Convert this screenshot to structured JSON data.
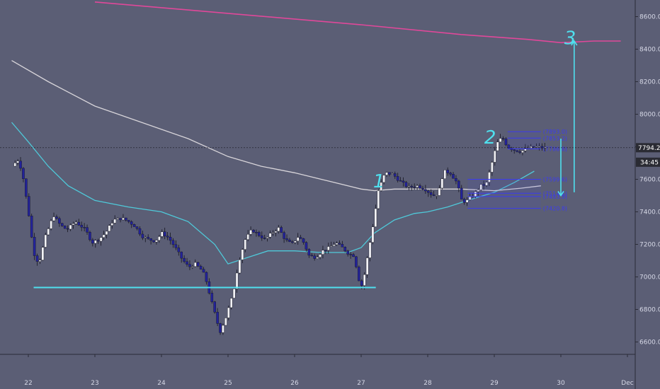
{
  "chart_data": {
    "type": "candlestick",
    "title": "",
    "xlabel": "",
    "ylabel": "",
    "ylim": [
      6480,
      8690
    ],
    "y_ticks": [
      6600,
      6800,
      7000,
      7200,
      7400,
      7600,
      7800,
      8000,
      8200,
      8400,
      8600
    ],
    "x_ticks": [
      {
        "label": "22",
        "t": 0
      },
      {
        "label": "23",
        "t": 1
      },
      {
        "label": "24",
        "t": 2
      },
      {
        "label": "25",
        "t": 3
      },
      {
        "label": "26",
        "t": 4
      },
      {
        "label": "27",
        "t": 5
      },
      {
        "label": "28",
        "t": 6
      },
      {
        "label": "29",
        "t": 7
      },
      {
        "label": "30",
        "t": 8
      },
      {
        "label": "Dec",
        "t": 9
      }
    ],
    "grid": false,
    "price_tag": {
      "label": "7794.2",
      "value": 7794.2
    },
    "countdown_tag": {
      "label": "34:45",
      "value": 7705
    },
    "candle_path": [
      [
        -0.2,
        7680
      ],
      [
        -0.12,
        7720
      ],
      [
        -0.05,
        7650
      ],
      [
        0.05,
        7380
      ],
      [
        0.12,
        7150
      ],
      [
        0.2,
        7080
      ],
      [
        0.3,
        7250
      ],
      [
        0.42,
        7380
      ],
      [
        0.52,
        7320
      ],
      [
        0.62,
        7290
      ],
      [
        0.75,
        7340
      ],
      [
        0.9,
        7290
      ],
      [
        1.0,
        7210
      ],
      [
        1.1,
        7230
      ],
      [
        1.2,
        7270
      ],
      [
        1.32,
        7350
      ],
      [
        1.45,
        7360
      ],
      [
        1.55,
        7340
      ],
      [
        1.65,
        7310
      ],
      [
        1.75,
        7250
      ],
      [
        1.85,
        7230
      ],
      [
        1.95,
        7220
      ],
      [
        2.05,
        7270
      ],
      [
        2.15,
        7240
      ],
      [
        2.25,
        7180
      ],
      [
        2.35,
        7110
      ],
      [
        2.45,
        7060
      ],
      [
        2.55,
        7080
      ],
      [
        2.65,
        7040
      ],
      [
        2.7,
        7000
      ],
      [
        2.78,
        6870
      ],
      [
        2.86,
        6750
      ],
      [
        2.92,
        6660
      ],
      [
        3.0,
        6740
      ],
      [
        3.06,
        6820
      ],
      [
        3.12,
        6900
      ],
      [
        3.2,
        7090
      ],
      [
        3.3,
        7230
      ],
      [
        3.4,
        7290
      ],
      [
        3.5,
        7260
      ],
      [
        3.6,
        7230
      ],
      [
        3.7,
        7270
      ],
      [
        3.8,
        7300
      ],
      [
        3.9,
        7230
      ],
      [
        4.0,
        7200
      ],
      [
        4.1,
        7250
      ],
      [
        4.18,
        7210
      ],
      [
        4.26,
        7130
      ],
      [
        4.36,
        7120
      ],
      [
        4.46,
        7160
      ],
      [
        4.56,
        7180
      ],
      [
        4.66,
        7210
      ],
      [
        4.76,
        7180
      ],
      [
        4.86,
        7140
      ],
      [
        4.94,
        7130
      ],
      [
        5.0,
        6990
      ],
      [
        5.06,
        6940
      ],
      [
        5.14,
        7130
      ],
      [
        5.22,
        7320
      ],
      [
        5.3,
        7530
      ],
      [
        5.4,
        7640
      ],
      [
        5.52,
        7630
      ],
      [
        5.62,
        7590
      ],
      [
        5.75,
        7550
      ],
      [
        5.88,
        7560
      ],
      [
        6.0,
        7540
      ],
      [
        6.12,
        7500
      ],
      [
        6.2,
        7510
      ],
      [
        6.28,
        7650
      ],
      [
        6.38,
        7640
      ],
      [
        6.48,
        7580
      ],
      [
        6.56,
        7460
      ],
      [
        6.64,
        7470
      ],
      [
        6.74,
        7510
      ],
      [
        6.84,
        7560
      ],
      [
        6.92,
        7570
      ],
      [
        7.0,
        7690
      ],
      [
        7.08,
        7820
      ],
      [
        7.16,
        7860
      ],
      [
        7.24,
        7800
      ],
      [
        7.34,
        7780
      ],
      [
        7.44,
        7770
      ],
      [
        7.54,
        7790
      ],
      [
        7.66,
        7800
      ],
      [
        7.78,
        7794
      ]
    ],
    "series": [
      {
        "color": "#4fc9d9",
        "x": [
          -0.25,
          0,
          0.3,
          0.6,
          1,
          1.5,
          2,
          2.4,
          2.8,
          3,
          3.3,
          3.6,
          4,
          4.4,
          4.8,
          5,
          5.2,
          5.5,
          5.8,
          6,
          6.3,
          6.6,
          7,
          7.3,
          7.6
        ],
        "values": [
          7950,
          7830,
          7680,
          7560,
          7470,
          7430,
          7400,
          7340,
          7200,
          7080,
          7120,
          7160,
          7160,
          7150,
          7150,
          7180,
          7270,
          7350,
          7390,
          7400,
          7430,
          7470,
          7520,
          7580,
          7650
        ]
      },
      {
        "color": "#d8d5da",
        "x": [
          -0.25,
          0.3,
          1,
          1.7,
          2.4,
          3,
          3.5,
          4,
          4.5,
          5,
          5.2,
          5.5,
          6,
          6.5,
          7,
          7.4,
          7.7
        ],
        "values": [
          8330,
          8200,
          8050,
          7950,
          7850,
          7740,
          7680,
          7640,
          7590,
          7540,
          7530,
          7540,
          7540,
          7540,
          7530,
          7545,
          7560
        ]
      },
      {
        "color": "#e0489a",
        "x": [
          1.0,
          3,
          5,
          6.5,
          7.5,
          8,
          8.5,
          8.9
        ],
        "values": [
          8690,
          8620,
          8550,
          8490,
          8460,
          8440,
          8450,
          8450
        ]
      }
    ],
    "annotations": [
      {
        "type": "hline",
        "value": 6935,
        "x_range": [
          0.08,
          5.22
        ],
        "color": "#4fe0ee"
      },
      {
        "type": "level",
        "label": "(7893.0)",
        "value": 7893,
        "x_range": [
          7.2,
          7.7
        ]
      },
      {
        "type": "level",
        "label": "(7853.2)",
        "value": 7853,
        "x_range": [
          7.2,
          7.7
        ]
      },
      {
        "type": "level",
        "label": "(7786.8)",
        "value": 7787,
        "x_range": [
          7.2,
          7.7
        ]
      },
      {
        "type": "level",
        "label": "(7599.6)",
        "value": 7600,
        "x_range": [
          6.6,
          7.7
        ]
      },
      {
        "type": "level",
        "label": "(7514.5)",
        "value": 7514,
        "x_range": [
          6.6,
          7.7
        ]
      },
      {
        "type": "level",
        "label": "(7493.9)",
        "value": 7494,
        "x_range": [
          6.6,
          7.7
        ]
      },
      {
        "type": "level",
        "label": "(7420.8)",
        "value": 7421,
        "x_range": [
          6.6,
          7.7
        ]
      },
      {
        "type": "arrow",
        "x": 8.2,
        "from": 7520,
        "to": 8450,
        "color": "#4fe0ee"
      },
      {
        "type": "arrow",
        "x": 8.0,
        "from": 7850,
        "to": 7500,
        "color": "#4fe0ee"
      },
      {
        "type": "hand_label",
        "label": "1",
        "x": 5.18,
        "value": 7550
      },
      {
        "type": "hand_label",
        "label": "2",
        "x": 6.85,
        "value": 7820
      },
      {
        "type": "hand_label",
        "label": "3",
        "x": 8.05,
        "value": 8430
      }
    ]
  }
}
